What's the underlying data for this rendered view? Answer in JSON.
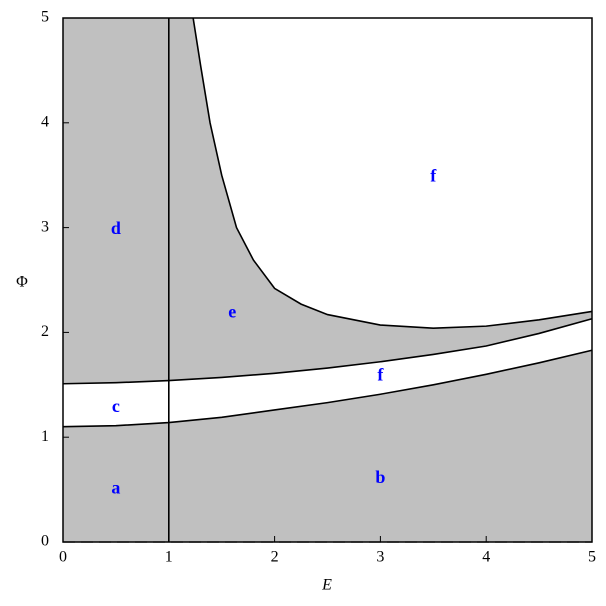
{
  "chart_data": {
    "type": "line",
    "xlabel": "E",
    "ylabel": "Φ",
    "xlim": [
      0,
      5
    ],
    "ylim": [
      0,
      5
    ],
    "xticks": [
      0,
      1,
      2,
      3,
      4,
      5
    ],
    "yticks": [
      0,
      1,
      2,
      3,
      4,
      5
    ],
    "fill": "#c0c0c0",
    "series": [
      {
        "color": "#000000",
        "x": [
          0,
          0.5,
          1,
          1.5,
          2,
          2.5,
          3,
          3.5,
          4,
          4.5,
          5
        ],
        "values": [
          1.1,
          1.11,
          1.14,
          1.19,
          1.26,
          1.33,
          1.41,
          1.5,
          1.6,
          1.71,
          1.83
        ]
      },
      {
        "color": "#000000",
        "x": [
          0,
          0.5,
          1,
          1.5,
          2,
          2.5,
          3,
          3.5,
          4,
          4.5,
          5
        ],
        "values": [
          1.51,
          1.52,
          1.54,
          1.57,
          1.61,
          1.66,
          1.72,
          1.79,
          1.87,
          1.99,
          2.13
        ]
      },
      {
        "color": "#000000",
        "x": [
          1.23,
          1.3,
          1.39,
          1.5,
          1.64,
          1.8,
          2,
          2.25,
          2.5,
          3,
          3.5,
          4,
          4.5,
          5
        ],
        "values": [
          5,
          4.55,
          4,
          3.5,
          3,
          2.69,
          2.42,
          2.27,
          2.17,
          2.07,
          2.04,
          2.06,
          2.12,
          2.2
        ]
      },
      {
        "color": "#000000",
        "x": [
          1,
          1
        ],
        "values": [
          0,
          5
        ]
      },
      {
        "color": "#808080",
        "dashed": true,
        "x": [
          0,
          5
        ],
        "values": [
          0,
          0
        ]
      }
    ],
    "annotations": [
      {
        "text": "a",
        "x": 0.5,
        "y": 0.5,
        "color": "#0000ff"
      },
      {
        "text": "b",
        "x": 3,
        "y": 0.6,
        "color": "#0000ff"
      },
      {
        "text": "c",
        "x": 0.5,
        "y": 1.28,
        "color": "#0000ff"
      },
      {
        "text": "d",
        "x": 0.5,
        "y": 2.98,
        "color": "#0000ff"
      },
      {
        "text": "e",
        "x": 1.6,
        "y": 2.18,
        "color": "#0000ff"
      },
      {
        "text": "f",
        "x": 3.5,
        "y": 3.48,
        "color": "#0000ff"
      },
      {
        "text": "f",
        "x": 3,
        "y": 1.58,
        "color": "#0000ff"
      }
    ]
  }
}
